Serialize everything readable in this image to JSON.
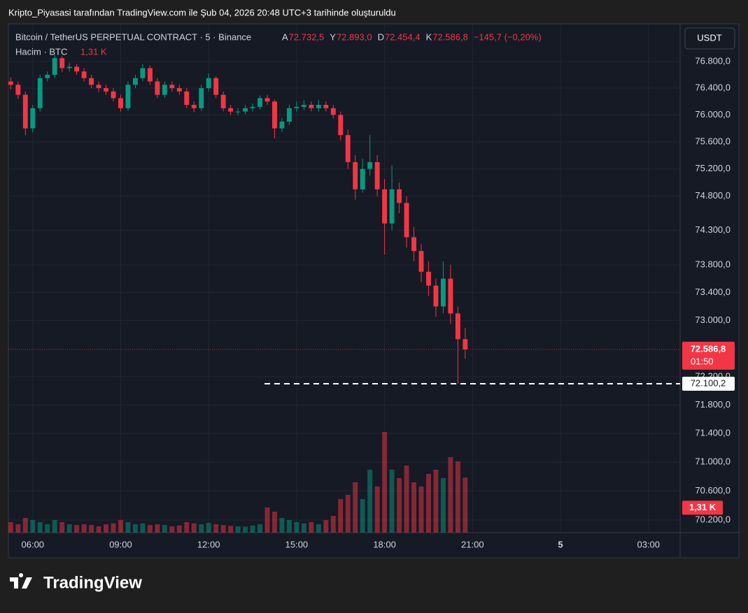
{
  "header": {
    "title": "Kripto_Piyasasi tarafından TradingView.com ile Şub 04, 2026 20:48 UTC+3 tarihinde oluşturuldu",
    "logo": "TradingView",
    "currency_button": "USDT"
  },
  "chart_data": {
    "type": "candlestick",
    "symbol": "Bitcoin / TetherUS PERPETUAL CONTRACT · 5 · Binance",
    "ohlc": [
      {
        "letter": "A",
        "value": 72732.5,
        "label": "72.732,5"
      },
      {
        "letter": "Y",
        "value": 72893.0,
        "label": "72.893,0"
      },
      {
        "letter": "D",
        "value": 72454.4,
        "label": "72.454,4"
      },
      {
        "letter": "K",
        "value": 72586.8,
        "label": "72.586,8"
      }
    ],
    "change": "−145,7 (−0,20%)",
    "countdown": "01:50",
    "volume_title": "Hacim · BTC",
    "volume_current": {
      "value": 1310,
      "label": "1,31 K"
    },
    "low_line": {
      "value": 72100.2,
      "label": "72.100,2"
    },
    "up_color": "#089981",
    "down_color": "#f23645",
    "log_scale": true,
    "grid": true,
    "x": [
      5.25,
      5.5,
      5.75,
      6,
      6.25,
      6.5,
      6.75,
      7,
      7.25,
      7.5,
      7.75,
      8,
      8.25,
      8.5,
      8.75,
      9,
      9.25,
      9.5,
      9.75,
      10,
      10.25,
      10.5,
      10.75,
      11,
      11.25,
      11.5,
      11.75,
      12,
      12.25,
      12.5,
      12.75,
      13,
      13.25,
      13.5,
      13.75,
      14,
      14.25,
      14.5,
      14.75,
      15,
      15.25,
      15.5,
      15.75,
      16,
      16.25,
      16.5,
      16.75,
      17,
      17.25,
      17.5,
      17.75,
      18,
      18.25,
      18.5,
      18.75,
      19,
      19.25,
      19.5,
      19.75,
      20,
      20.25,
      20.5,
      20.75
    ],
    "open": [
      76500,
      76450,
      76300,
      75800,
      76100,
      76550,
      76600,
      76850,
      76700,
      76720,
      76650,
      76550,
      76450,
      76400,
      76350,
      76250,
      76100,
      76450,
      76550,
      76700,
      76500,
      76300,
      76450,
      76400,
      76350,
      76150,
      76100,
      76400,
      76550,
      76300,
      76100,
      76050,
      76050,
      76100,
      76120,
      76250,
      76200,
      75800,
      75900,
      76100,
      76120,
      76150,
      76100,
      76150,
      76100,
      76000,
      75700,
      75300,
      74900,
      75200,
      75300,
      74900,
      74400,
      74900,
      74700,
      74200,
      74000,
      73700,
      73500,
      73200,
      73600,
      73100,
      72732.5
    ],
    "high": [
      76560,
      76500,
      76350,
      76150,
      76600,
      76650,
      76900,
      76880,
      76780,
      76760,
      76700,
      76600,
      76500,
      76450,
      76400,
      76300,
      76500,
      76600,
      76760,
      76740,
      76550,
      76500,
      76500,
      76450,
      76400,
      76200,
      76450,
      76620,
      76580,
      76350,
      76150,
      76100,
      76150,
      76170,
      76290,
      76300,
      76230,
      75950,
      76150,
      76200,
      76220,
      76200,
      76220,
      76200,
      76150,
      76050,
      75780,
      75400,
      75350,
      75700,
      75400,
      75050,
      75250,
      75000,
      74800,
      74350,
      74100,
      73850,
      73600,
      73850,
      73800,
      73200,
      72893
    ],
    "low": [
      76380,
      76240,
      75700,
      75740,
      76050,
      76500,
      76550,
      76640,
      76650,
      76600,
      76500,
      76400,
      76340,
      76300,
      76200,
      76050,
      76060,
      76400,
      76500,
      76450,
      76250,
      76260,
      76350,
      76300,
      76100,
      76040,
      76060,
      76350,
      76250,
      76050,
      76000,
      76000,
      76010,
      76050,
      76080,
      76150,
      75650,
      75750,
      75850,
      76050,
      76070,
      76050,
      76050,
      76050,
      75950,
      75620,
      75200,
      74750,
      74850,
      75100,
      74800,
      73950,
      74300,
      74550,
      74050,
      73850,
      73550,
      73350,
      73050,
      73100,
      72950,
      72100.2,
      72454.4
    ],
    "close": [
      76450,
      76300,
      75800,
      76100,
      76550,
      76600,
      76850,
      76700,
      76720,
      76650,
      76550,
      76450,
      76400,
      76350,
      76250,
      76100,
      76450,
      76550,
      76700,
      76500,
      76300,
      76450,
      76400,
      76350,
      76150,
      76100,
      76400,
      76550,
      76300,
      76100,
      76050,
      76050,
      76100,
      76120,
      76250,
      76200,
      75800,
      75900,
      76100,
      76120,
      76150,
      76100,
      76150,
      76100,
      76000,
      75700,
      75300,
      74900,
      75200,
      75300,
      74900,
      74400,
      74900,
      74700,
      74200,
      74000,
      73700,
      73500,
      73200,
      73600,
      73100,
      72732.5,
      72586.8
    ],
    "volume": [
      250,
      200,
      350,
      300,
      250,
      200,
      300,
      250,
      200,
      180,
      200,
      180,
      150,
      200,
      220,
      300,
      250,
      200,
      220,
      180,
      200,
      180,
      150,
      170,
      250,
      220,
      200,
      230,
      200,
      180,
      160,
      150,
      140,
      170,
      200,
      600,
      500,
      350,
      300,
      250,
      220,
      250,
      200,
      300,
      400,
      800,
      900,
      1200,
      800,
      1500,
      1100,
      2400,
      1500,
      1300,
      1600,
      1200,
      1100,
      1400,
      1500,
      1300,
      1800,
      1700,
      1310
    ],
    "xlim": [
      5.17,
      28.08
    ],
    "xticks": [
      {
        "value": 6,
        "label": "06:00"
      },
      {
        "value": 9,
        "label": "09:00"
      },
      {
        "value": 12,
        "label": "12:00"
      },
      {
        "value": 15,
        "label": "15:00"
      },
      {
        "value": 18,
        "label": "18:00"
      },
      {
        "value": 21,
        "label": "21:00"
      },
      {
        "value": 24,
        "label": "5"
      },
      {
        "value": 27,
        "label": "03:00"
      }
    ],
    "ylim": [
      70027,
      77359
    ],
    "yticks": [
      {
        "value": 70200,
        "label": "70.200,0"
      },
      {
        "value": 70600,
        "label": "70.600,0"
      },
      {
        "value": 71000,
        "label": "71.000,0"
      },
      {
        "value": 71400,
        "label": "71.400,0"
      },
      {
        "value": 71800,
        "label": "71.800,0"
      },
      {
        "value": 72200,
        "label": "72.200,0"
      },
      {
        "value": 73000,
        "label": "73.000,0"
      },
      {
        "value": 73400,
        "label": "73.400,0"
      },
      {
        "value": 73800,
        "label": "73.800,0"
      },
      {
        "value": 74300,
        "label": "74.300,0"
      },
      {
        "value": 74800,
        "label": "74.800,0"
      },
      {
        "value": 75200,
        "label": "75.200,0"
      },
      {
        "value": 75600,
        "label": "75.600,0"
      },
      {
        "value": 76000,
        "label": "76.000,0"
      },
      {
        "value": 76400,
        "label": "76.400,0"
      },
      {
        "value": 76800,
        "label": "76.800,0"
      }
    ],
    "vlim": [
      0,
      4000
    ]
  }
}
